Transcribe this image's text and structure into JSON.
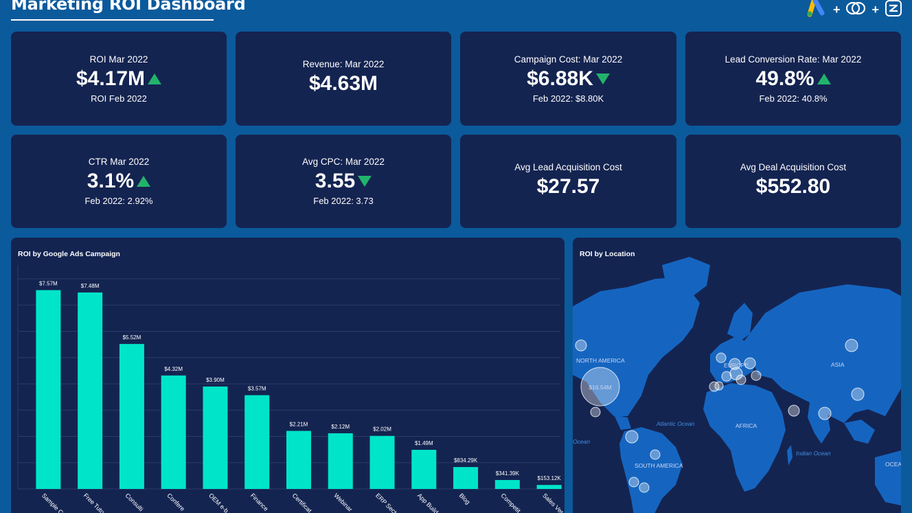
{
  "header": {
    "title": "Marketing ROI Dashboard",
    "plus": "+"
  },
  "kpis": [
    {
      "label": "ROI Mar 2022",
      "value": "$4.17M",
      "trend": "up",
      "sub": "ROI Feb 2022"
    },
    {
      "label": "Revenue: Mar 2022",
      "value": "$4.63M",
      "trend": "none",
      "sub": ""
    },
    {
      "label": "Campaign Cost: Mar 2022",
      "value": "$6.88K",
      "trend": "down",
      "sub": "Feb 2022: $8.80K"
    },
    {
      "label": "Lead Conversion Rate: Mar 2022",
      "value": "49.8%",
      "trend": "up",
      "sub": "Feb 2022: 40.8%"
    },
    {
      "label": "CTR Mar 2022",
      "value": "3.1%",
      "trend": "up",
      "sub": "Feb 2022: 2.92%"
    },
    {
      "label": "Avg CPC: Mar 2022",
      "value": "3.55",
      "trend": "down",
      "sub": "Feb 2022: 3.73"
    },
    {
      "label": "Avg Lead Acquisition Cost",
      "value": "$27.57",
      "trend": "none",
      "sub": ""
    },
    {
      "label": "Avg Deal Acquisition Cost",
      "value": "$552.80",
      "trend": "none",
      "sub": ""
    }
  ],
  "colors": {
    "up": "#22b36b",
    "down": "#22b36b",
    "bar": "#00e5c9",
    "card": "#142451",
    "background": "#0b5a9c"
  },
  "bar_panel": {
    "title": "ROI by Google Ads Campaign"
  },
  "map_panel": {
    "title": "ROI by Location",
    "labels": [
      "NORTH AMERICA",
      "EUROPE",
      "ASIA",
      "AFRICA",
      "SOUTH AMERICA",
      "Atlantic Ocean",
      "Indian Ocean",
      "Ocean",
      "OCEANIA"
    ],
    "bubble_value": "$16.54M"
  },
  "chart_data": {
    "type": "bar",
    "title": "ROI by Google Ads Campaign",
    "categories": [
      "Sample C",
      "Free Tuto",
      "Consulti",
      "Confere",
      "OEM e-b",
      "Finance",
      "Certificat",
      "Webinar",
      "ERP Sect",
      "App Build",
      "Blog",
      "Competit",
      "Sales Ver"
    ],
    "values": [
      7.57,
      7.48,
      5.52,
      4.32,
      3.9,
      3.57,
      2.21,
      2.12,
      2.02,
      1.49,
      0.83429,
      0.34139,
      0.15312
    ],
    "value_labels": [
      "$7.57M",
      "$7.48M",
      "$5.52M",
      "$4.32M",
      "$3.90M",
      "$3.57M",
      "$2.21M",
      "$2.12M",
      "$2.02M",
      "$1.49M",
      "$834.29K",
      "$341.39K",
      "$153.12K"
    ],
    "ylim": [
      0,
      8
    ],
    "grid": true
  }
}
